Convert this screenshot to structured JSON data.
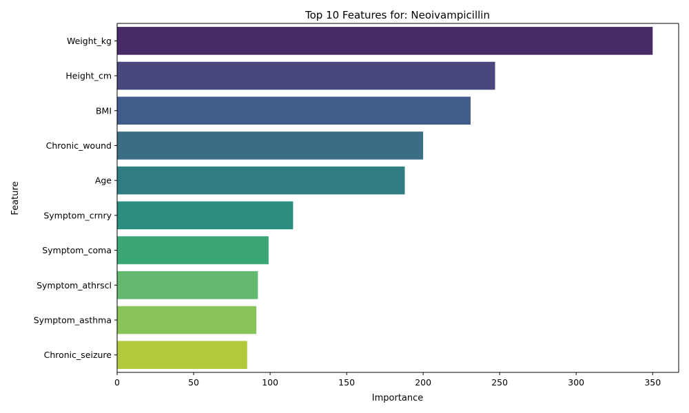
{
  "chart_data": {
    "type": "bar",
    "orientation": "horizontal",
    "title": "Top 10 Features for: Neoivampicillin",
    "xlabel": "Importance",
    "ylabel": "Feature",
    "xlim": [
      0,
      367
    ],
    "xticks": [
      0,
      50,
      100,
      150,
      200,
      250,
      300,
      350
    ],
    "grid": false,
    "categories": [
      "Weight_kg",
      "Height_cm",
      "BMI",
      "Chronic_wound",
      "Age",
      "Symptom_crnry",
      "Symptom_coma",
      "Symptom_athrscl",
      "Symptom_asthma",
      "Chronic_seizure"
    ],
    "values": [
      350,
      247,
      231,
      200,
      188,
      115,
      99,
      92,
      91,
      85
    ],
    "colors": [
      "#482a66",
      "#49487e",
      "#415b8a",
      "#3b6d85",
      "#317c80",
      "#2b8e7f",
      "#3aa676",
      "#62b96f",
      "#88c45a",
      "#b2c93b"
    ]
  }
}
